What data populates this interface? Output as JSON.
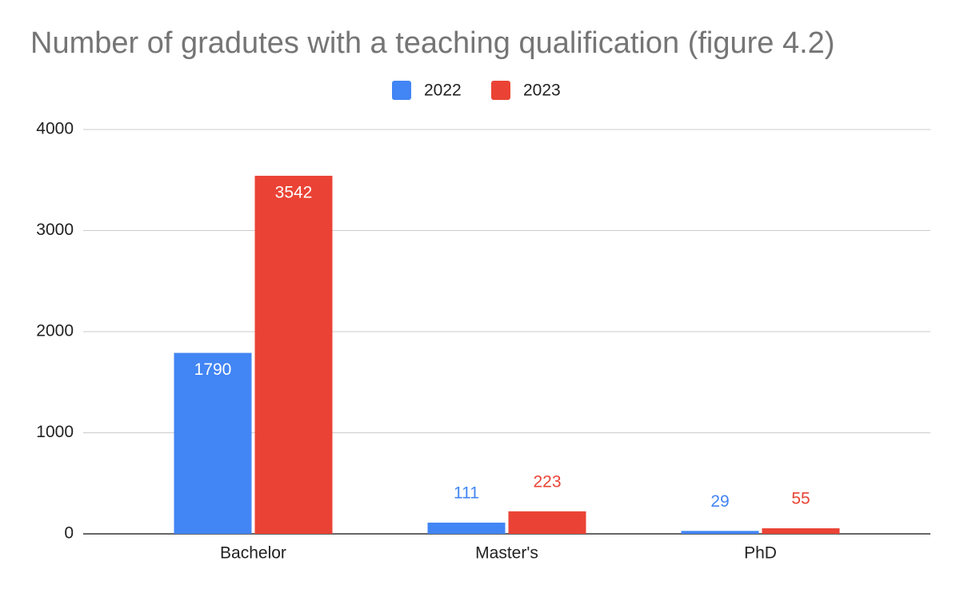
{
  "chart_data": {
    "type": "bar",
    "title": "Number of gradutes with a teaching qualification (figure 4.2)",
    "categories": [
      "Bachelor",
      "Master's",
      "PhD"
    ],
    "series": [
      {
        "name": "2022",
        "color": "#4285f4",
        "values": [
          1790,
          111,
          29
        ]
      },
      {
        "name": "2023",
        "color": "#ea4335",
        "values": [
          3542,
          223,
          55
        ]
      }
    ],
    "ylim": [
      0,
      4000
    ],
    "yticks": [
      0,
      1000,
      2000,
      3000,
      4000
    ],
    "grid": true,
    "legend": "top"
  }
}
